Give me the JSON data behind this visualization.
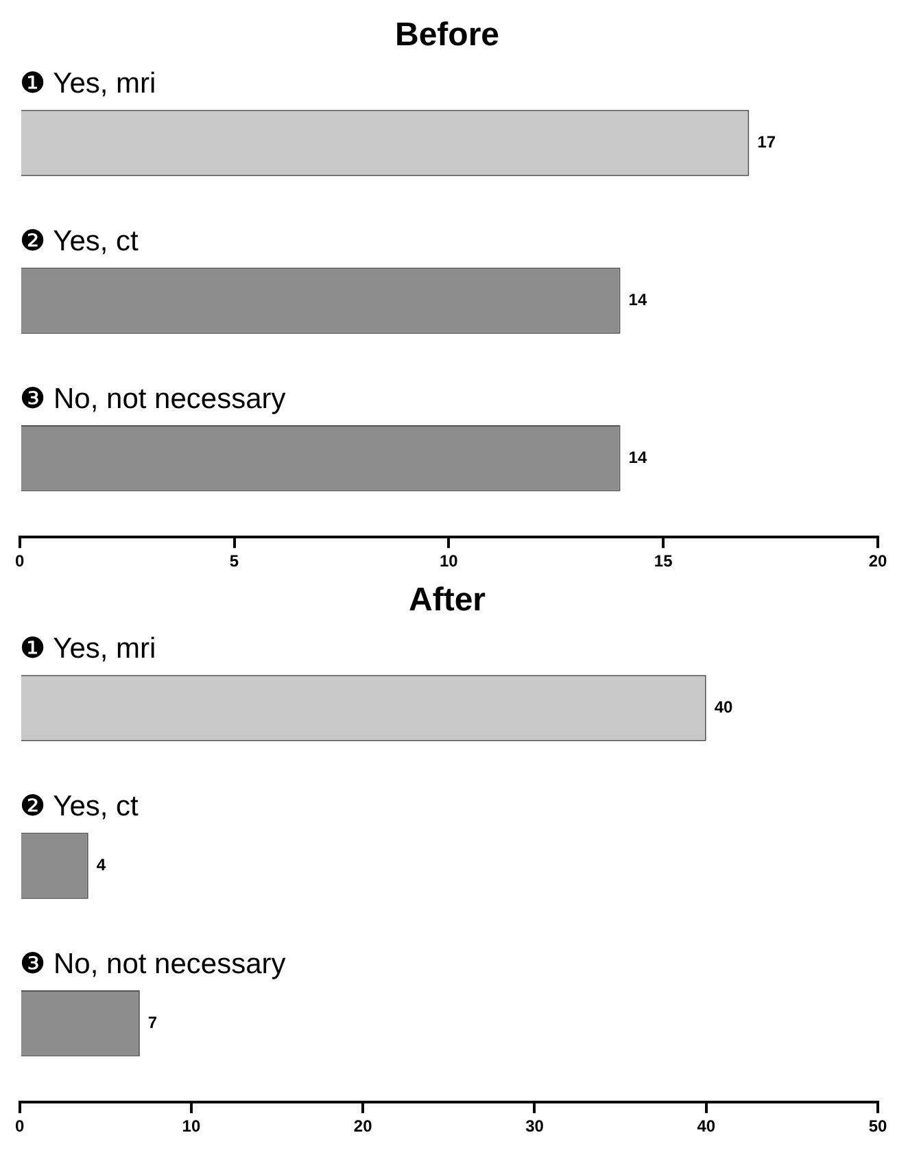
{
  "chart_data": [
    {
      "type": "bar",
      "orientation": "horizontal",
      "title": "Before",
      "categories": [
        "❶ Yes, mri",
        "❷ Yes, ct",
        "❸ No, not necessary"
      ],
      "values": [
        17,
        14,
        14
      ],
      "colors": [
        "#c8c8c8",
        "#8c8c8c",
        "#8c8c8c"
      ],
      "xlim": [
        0,
        20
      ],
      "xticks": [
        0,
        5,
        10,
        15,
        20
      ],
      "data_labels": true
    },
    {
      "type": "bar",
      "orientation": "horizontal",
      "title": "After",
      "categories": [
        "❶ Yes, mri",
        "❷ Yes, ct",
        "❸ No, not necessary"
      ],
      "values": [
        40,
        4,
        7
      ],
      "colors": [
        "#c8c8c8",
        "#8c8c8c",
        "#8c8c8c"
      ],
      "xlim": [
        0,
        50
      ],
      "xticks": [
        0,
        10,
        20,
        30,
        40,
        50
      ],
      "data_labels": true
    }
  ]
}
